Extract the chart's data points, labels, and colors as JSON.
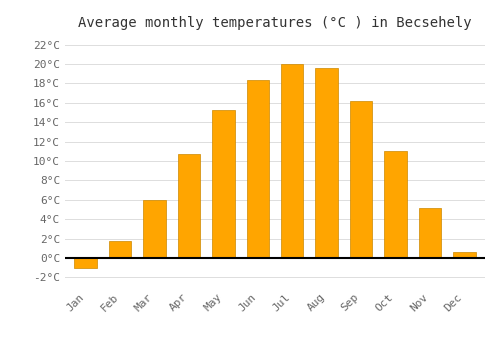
{
  "months": [
    "Jan",
    "Feb",
    "Mar",
    "Apr",
    "May",
    "Jun",
    "Jul",
    "Aug",
    "Sep",
    "Oct",
    "Nov",
    "Dec"
  ],
  "values": [
    -1.0,
    1.7,
    6.0,
    10.7,
    15.3,
    18.4,
    20.0,
    19.6,
    16.2,
    11.0,
    5.2,
    0.6
  ],
  "bar_color": "#FFA500",
  "bar_edge_color": "#CC8800",
  "title": "Average monthly temperatures (°C ) in Becsehely",
  "ylim": [
    -3,
    23
  ],
  "yticks": [
    -2,
    0,
    2,
    4,
    6,
    8,
    10,
    12,
    14,
    16,
    18,
    20,
    22
  ],
  "ytick_labels": [
    "-2°C",
    "0°C",
    "2°C",
    "4°C",
    "6°C",
    "8°C",
    "10°C",
    "12°C",
    "14°C",
    "16°C",
    "18°C",
    "20°C",
    "22°C"
  ],
  "background_color": "#FFFFFF",
  "grid_color": "#DDDDDD",
  "title_fontsize": 10,
  "tick_fontsize": 8,
  "bar_width": 0.65,
  "label_color": "#666666"
}
